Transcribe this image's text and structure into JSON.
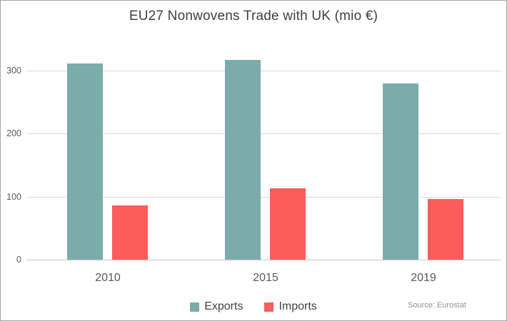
{
  "source_note": "Source: Eurostat",
  "colors": {
    "exports_bar": "#7BACAA",
    "imports_bar": "#FD5C5C",
    "gridline": "#D9D9D9",
    "axis_text": "#595959",
    "title_text": "#404040",
    "source_text": "#919191",
    "border": "#A6A6A6"
  },
  "chart_data": {
    "type": "bar",
    "title": "EU27 Nonwovens Trade with UK (mio €)",
    "categories": [
      "2010",
      "2015",
      "2019"
    ],
    "series": [
      {
        "name": "Exports",
        "color": "#7BACAA",
        "values": [
          311,
          316,
          279
        ]
      },
      {
        "name": "Imports",
        "color": "#FD5C5C",
        "values": [
          86,
          113,
          96
        ]
      }
    ],
    "xlabel": "",
    "ylabel": "",
    "yticks": [
      0,
      100,
      200,
      300
    ],
    "ylim": [
      0,
      340
    ],
    "grid": true,
    "legend_position": "bottom"
  }
}
